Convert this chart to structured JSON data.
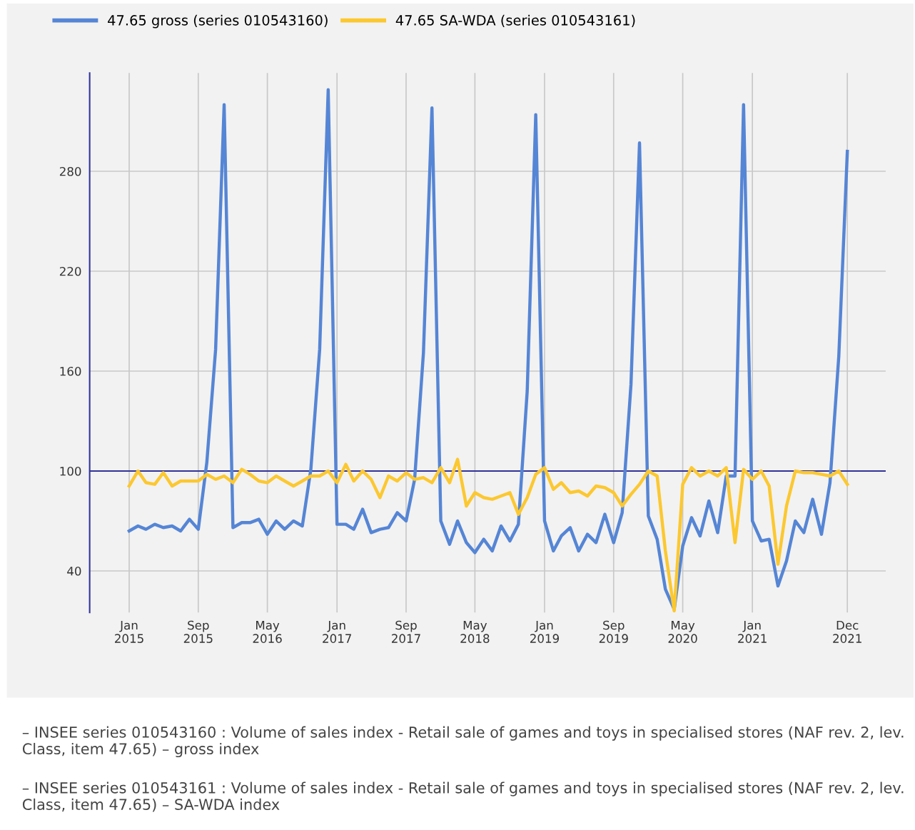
{
  "chart_data": {
    "type": "line",
    "x": [
      "2015-01",
      "2015-02",
      "2015-03",
      "2015-04",
      "2015-05",
      "2015-06",
      "2015-07",
      "2015-08",
      "2015-09",
      "2015-10",
      "2015-11",
      "2015-12",
      "2016-01",
      "2016-02",
      "2016-03",
      "2016-04",
      "2016-05",
      "2016-06",
      "2016-07",
      "2016-08",
      "2016-09",
      "2016-10",
      "2016-11",
      "2016-12",
      "2017-01",
      "2017-02",
      "2017-03",
      "2017-04",
      "2017-05",
      "2017-06",
      "2017-07",
      "2017-08",
      "2017-09",
      "2017-10",
      "2017-11",
      "2017-12",
      "2018-01",
      "2018-02",
      "2018-03",
      "2018-04",
      "2018-05",
      "2018-06",
      "2018-07",
      "2018-08",
      "2018-09",
      "2018-10",
      "2018-11",
      "2018-12",
      "2019-01",
      "2019-02",
      "2019-03",
      "2019-04",
      "2019-05",
      "2019-06",
      "2019-07",
      "2019-08",
      "2019-09",
      "2019-10",
      "2019-11",
      "2019-12",
      "2020-01",
      "2020-02",
      "2020-03",
      "2020-04",
      "2020-05",
      "2020-06",
      "2020-07",
      "2020-08",
      "2020-09",
      "2020-10",
      "2020-11",
      "2020-12",
      "2021-01",
      "2021-02",
      "2021-03",
      "2021-04",
      "2021-05",
      "2021-06",
      "2021-07",
      "2021-08",
      "2021-09",
      "2021-10",
      "2021-11",
      "2021-12"
    ],
    "series": [
      {
        "name": "47.65 gross (series 010543160)",
        "color": "#5585d5",
        "values": [
          64,
          67,
          65,
          68,
          66,
          67,
          64,
          71,
          65,
          105,
          173,
          320,
          66,
          69,
          69,
          71,
          62,
          70,
          65,
          70,
          67,
          101,
          173,
          329,
          68,
          68,
          65,
          77,
          63,
          65,
          66,
          75,
          70,
          95,
          171,
          318,
          70,
          56,
          70,
          57,
          51,
          59,
          52,
          67,
          58,
          68,
          148,
          314,
          70,
          52,
          61,
          66,
          52,
          62,
          57,
          74,
          57,
          75,
          152,
          297,
          73,
          59,
          29,
          17,
          55,
          72,
          61,
          82,
          63,
          97,
          97,
          320,
          70,
          58,
          59,
          31,
          46,
          70,
          63,
          83,
          62,
          93,
          169,
          292
        ]
      },
      {
        "name": "47.65 SA-WDA (series 010543161)",
        "color": "#fcc830",
        "values": [
          91,
          100,
          93,
          92,
          99,
          91,
          94,
          94,
          94,
          98,
          95,
          97,
          93,
          101,
          98,
          94,
          93,
          97,
          94,
          91,
          94,
          97,
          97,
          100,
          93,
          104,
          94,
          100,
          95,
          84,
          97,
          94,
          99,
          95,
          96,
          93,
          102,
          93,
          107,
          79,
          87,
          84,
          83,
          85,
          87,
          74,
          84,
          98,
          102,
          89,
          93,
          87,
          88,
          85,
          91,
          90,
          87,
          79,
          86,
          92,
          100,
          97,
          52,
          16,
          92,
          102,
          97,
          100,
          97,
          102,
          57,
          101,
          95,
          100,
          91,
          44,
          79,
          100,
          99,
          99,
          98,
          97,
          100,
          92
        ]
      }
    ],
    "xlim": [
      "2014-08-15",
      "2022-04-15"
    ],
    "xticks": [
      {
        "value": "2015-01",
        "label": "Jan\n2015"
      },
      {
        "value": "2015-09",
        "label": "Sep\n2015"
      },
      {
        "value": "2016-05",
        "label": "May\n2016"
      },
      {
        "value": "2017-01",
        "label": "Jan\n2017"
      },
      {
        "value": "2017-09",
        "label": "Sep\n2017"
      },
      {
        "value": "2018-05",
        "label": "May\n2018"
      },
      {
        "value": "2019-01",
        "label": "Jan\n2019"
      },
      {
        "value": "2019-09",
        "label": "Sep\n2019"
      },
      {
        "value": "2020-05",
        "label": "May\n2020"
      },
      {
        "value": "2021-01",
        "label": "Jan\n2021"
      },
      {
        "value": "2021-12",
        "label": "Dec\n2021"
      }
    ],
    "ylim": [
      15,
      339
    ],
    "yticks": [
      40,
      100,
      160,
      220,
      280
    ],
    "ref_lines": [
      {
        "axis": "y",
        "value": 100,
        "color": "#33339a"
      }
    ],
    "grid": true,
    "legend": "top left",
    "marker": "none",
    "line_style": "solid",
    "annotations": [
      "– INSEE series 010543160 : Volume of sales index - Retail sale of games and toys in specialised stores (NAF rev. 2, lev. Class, item 47.65) – gross index",
      "– INSEE series 010543161 : Volume of sales index - Retail sale of games and toys in specialised stores (NAF rev. 2, lev. Class, item 47.65) – SA-WDA index"
    ]
  }
}
